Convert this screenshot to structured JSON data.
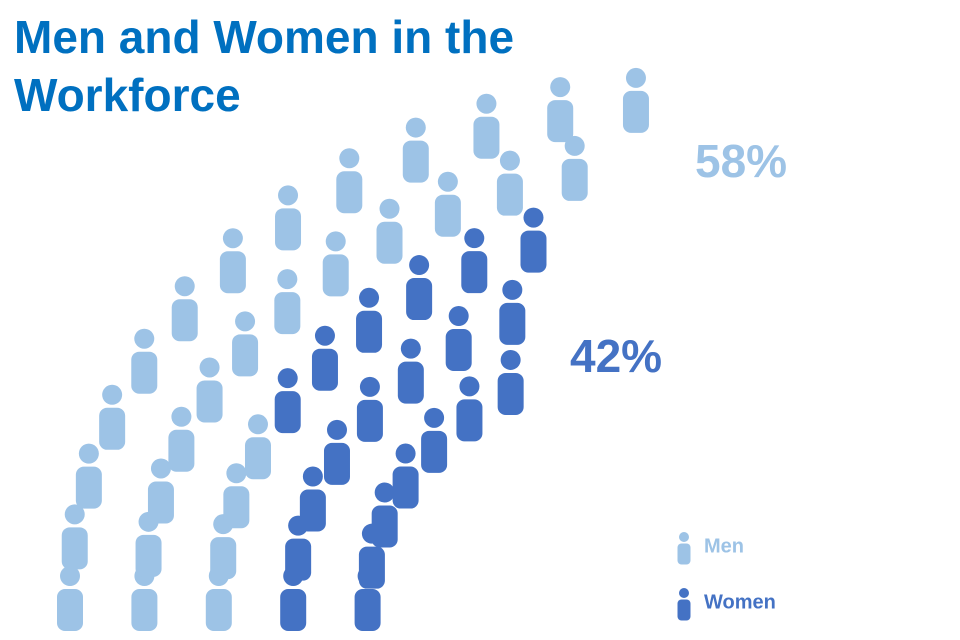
{
  "chart_data": {
    "type": "pictograph",
    "title": "Men and Women in the Workforce",
    "series": [
      {
        "name": "Men",
        "color": "#9dc3e6",
        "values": [
          58
        ],
        "value_labels": [
          "58%"
        ]
      },
      {
        "name": "Women",
        "color": "#4472c4",
        "values": [
          42
        ],
        "value_labels": [
          "42%"
        ]
      }
    ]
  }
}
